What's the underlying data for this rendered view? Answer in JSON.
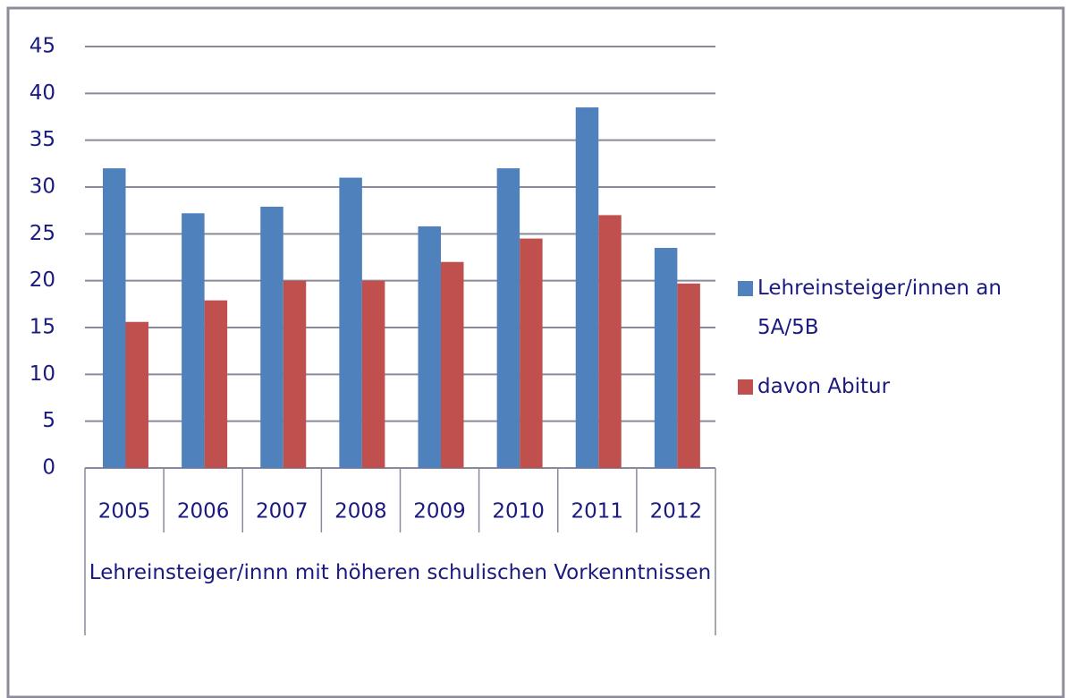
{
  "chart_data": {
    "type": "bar",
    "categories": [
      "2005",
      "2006",
      "2007",
      "2008",
      "2009",
      "2010",
      "2011",
      "2012"
    ],
    "category_group": "Lehreinsteiger/innn mit höheren schulischen Vorkenntnissen",
    "series": [
      {
        "name": "Lehreinsteiger/innen an 5A/5B",
        "color": "#4f81bd",
        "values": [
          32.0,
          27.2,
          27.9,
          31.0,
          25.8,
          32.0,
          38.5,
          23.5
        ]
      },
      {
        "name": "davon Abitur",
        "color": "#c0504d",
        "values": [
          15.6,
          17.9,
          20.0,
          20.0,
          22.0,
          24.5,
          27.0,
          19.7
        ]
      }
    ],
    "ylim": [
      0,
      45
    ],
    "yticks": [
      0,
      5,
      10,
      15,
      20,
      25,
      30,
      35,
      40,
      45
    ],
    "grid": true,
    "legend": "right"
  }
}
